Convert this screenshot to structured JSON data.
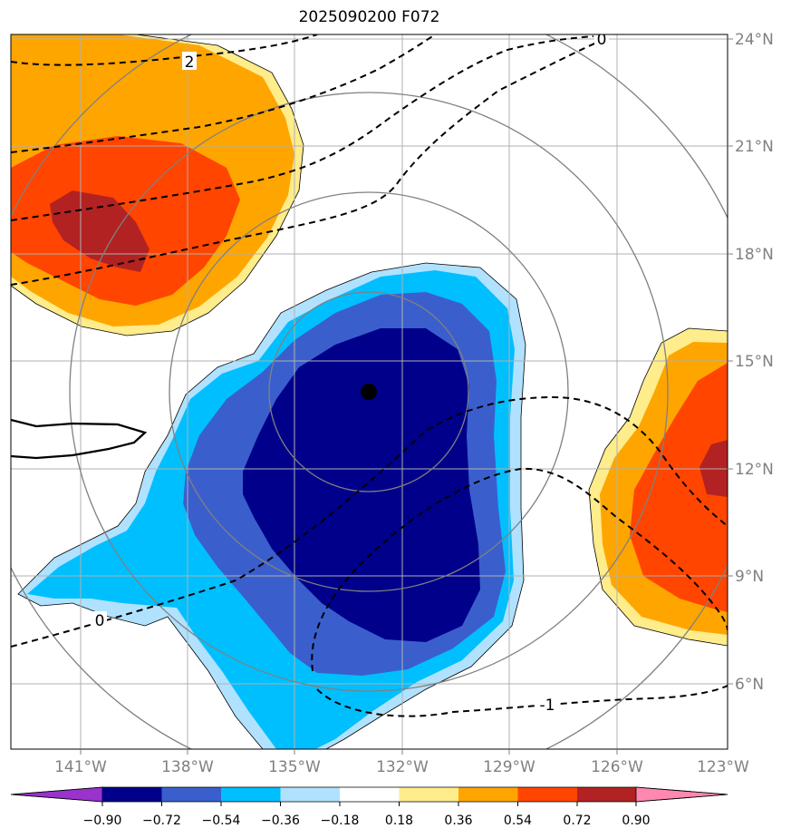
{
  "title": "2025090200 F072",
  "lon_ticks": [
    "141°W",
    "138°W",
    "135°W",
    "132°W",
    "129°W",
    "126°W",
    "123°W"
  ],
  "lat_ticks": [
    "24°N",
    "21°N",
    "18°N",
    "15°N",
    "12°N",
    "9°N",
    "6°N"
  ],
  "colorbar": {
    "labels": [
      "−0.90",
      "−0.72",
      "−0.54",
      "−0.36",
      "−0.18",
      "0.18",
      "0.36",
      "0.54",
      "0.72",
      "0.90"
    ],
    "colors": [
      "#9933CC",
      "#00008B",
      "#3A5FCD",
      "#00BFFF",
      "#B0E2FF",
      "#FFFFFF",
      "#FFEC8B",
      "#FFA500",
      "#FF4500",
      "#B22222",
      "#FF88B0"
    ]
  },
  "contour_labels": {
    "top_zero": "0",
    "top_two": "2",
    "left_zero": "0",
    "bottom_minus_one": "-1"
  },
  "storm_center": {
    "lon": -133.0,
    "lat": 14.2
  },
  "colors": {
    "grid": "#b0b0b0",
    "range_ring": "#808080",
    "contour": "#000000"
  }
}
